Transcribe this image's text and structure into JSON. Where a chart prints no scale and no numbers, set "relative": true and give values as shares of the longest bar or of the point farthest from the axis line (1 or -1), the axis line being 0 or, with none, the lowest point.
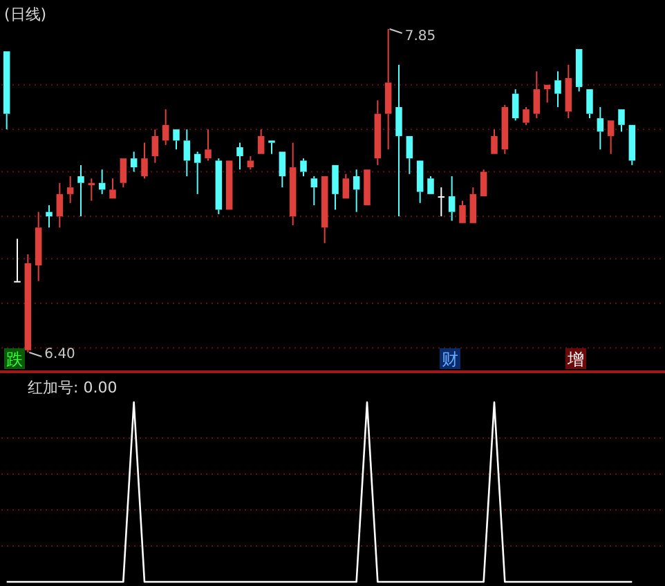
{
  "chart_data": [
    {
      "type": "candlestick",
      "title": "(日线)",
      "categories": [
        null,
        null,
        null,
        null,
        null,
        null,
        null,
        null,
        null,
        null,
        null,
        null,
        null,
        null,
        null,
        null,
        null,
        null,
        null,
        null,
        null,
        null,
        null,
        null,
        null,
        null,
        null,
        null,
        null,
        null,
        null,
        null,
        null,
        null,
        null,
        null,
        null,
        null,
        null,
        null,
        null,
        null,
        null,
        null,
        null,
        null,
        null,
        null,
        null,
        null,
        null,
        null,
        null,
        null,
        null,
        null,
        null,
        null,
        null,
        null
      ],
      "ohlc": [
        [
          7.75,
          7.75,
          7.4,
          7.47
        ],
        [
          6.72,
          6.91,
          6.72,
          6.72
        ],
        [
          6.41,
          6.84,
          6.4,
          6.8
        ],
        [
          6.79,
          7.03,
          6.72,
          6.96
        ],
        [
          7.03,
          7.06,
          6.96,
          7.01
        ],
        [
          7.01,
          7.16,
          6.96,
          7.11
        ],
        [
          7.11,
          7.19,
          7.07,
          7.14
        ],
        [
          7.19,
          7.24,
          7.01,
          7.16
        ],
        [
          7.15,
          7.18,
          7.08,
          7.16
        ],
        [
          7.16,
          7.22,
          7.11,
          7.13
        ],
        [
          7.09,
          7.18,
          7.09,
          7.13
        ],
        [
          7.16,
          7.27,
          7.14,
          7.27
        ],
        [
          7.27,
          7.3,
          7.21,
          7.23
        ],
        [
          7.19,
          7.34,
          7.18,
          7.27
        ],
        [
          7.28,
          7.4,
          7.25,
          7.37
        ],
        [
          7.35,
          7.49,
          7.33,
          7.42
        ],
        [
          7.4,
          7.4,
          7.31,
          7.35
        ],
        [
          7.35,
          7.4,
          7.19,
          7.26
        ],
        [
          7.29,
          7.3,
          7.11,
          7.25
        ],
        [
          7.27,
          7.4,
          7.26,
          7.31
        ],
        [
          7.26,
          7.27,
          7.02,
          7.04
        ],
        [
          7.04,
          7.26,
          7.04,
          7.26
        ],
        [
          7.32,
          7.34,
          7.22,
          7.28
        ],
        [
          7.23,
          7.28,
          7.22,
          7.26
        ],
        [
          7.29,
          7.4,
          7.29,
          7.37
        ],
        [
          7.35,
          7.35,
          7.29,
          7.34
        ],
        [
          7.3,
          7.3,
          7.14,
          7.19
        ],
        [
          7.01,
          7.34,
          6.97,
          7.23
        ],
        [
          7.26,
          7.27,
          7.19,
          7.21
        ],
        [
          7.18,
          7.19,
          7.06,
          7.14
        ],
        [
          6.96,
          7.19,
          6.89,
          7.19
        ],
        [
          7.24,
          7.24,
          7.04,
          7.11
        ],
        [
          7.09,
          7.2,
          7.09,
          7.18
        ],
        [
          7.19,
          7.22,
          7.03,
          7.13
        ],
        [
          7.06,
          7.22,
          7.06,
          7.22
        ],
        [
          7.27,
          7.53,
          7.24,
          7.47
        ],
        [
          7.47,
          7.85,
          7.31,
          7.61
        ],
        [
          7.5,
          7.69,
          7.01,
          7.37
        ],
        [
          7.37,
          7.37,
          7.2,
          7.27
        ],
        [
          7.26,
          7.26,
          7.07,
          7.12
        ],
        [
          7.18,
          7.19,
          7.11,
          7.11
        ],
        [
          7.1,
          7.14,
          7.01,
          7.1
        ],
        [
          7.1,
          7.19,
          6.99,
          7.03
        ],
        [
          6.98,
          7.08,
          6.98,
          7.06
        ],
        [
          6.98,
          7.14,
          6.98,
          7.11
        ],
        [
          7.1,
          7.22,
          7.1,
          7.21
        ],
        [
          7.29,
          7.4,
          7.29,
          7.37
        ],
        [
          7.31,
          7.51,
          7.29,
          7.5
        ],
        [
          7.56,
          7.58,
          7.44,
          7.45
        ],
        [
          7.43,
          7.5,
          7.42,
          7.49
        ],
        [
          7.47,
          7.66,
          7.45,
          7.58
        ],
        [
          7.58,
          7.6,
          7.52,
          7.6
        ],
        [
          7.62,
          7.66,
          7.5,
          7.56
        ],
        [
          7.48,
          7.69,
          7.45,
          7.63
        ],
        [
          7.76,
          7.76,
          7.57,
          7.59
        ],
        [
          7.58,
          7.58,
          7.45,
          7.47
        ],
        [
          7.45,
          7.5,
          7.31,
          7.39
        ],
        [
          7.37,
          7.44,
          7.29,
          7.44
        ],
        [
          7.49,
          7.49,
          7.39,
          7.42
        ],
        [
          7.42,
          7.42,
          7.24,
          7.26
        ]
      ],
      "yticks": [
        {
          "value": 6.42,
          "label": null
        },
        {
          "value": 6.62,
          "label": null
        },
        {
          "value": 6.82,
          "label": null
        },
        {
          "value": 7.01,
          "label": null
        },
        {
          "value": 7.21,
          "label": null
        },
        {
          "value": 7.4,
          "label": null
        },
        {
          "value": 7.6,
          "label": null
        }
      ],
      "grid": "y",
      "annotations": [
        "7.85",
        "6.40",
        "跌",
        "财",
        "增"
      ]
    },
    {
      "type": "line",
      "title": "红加号: 0.00",
      "relative": true,
      "color": "#ffffff",
      "ref_lines": [
        {
          "axis": "y",
          "value": 0.8,
          "color": "#6a1010",
          "line_style": "dotted"
        },
        {
          "axis": "y",
          "value": 0.6,
          "color": "#6a1010",
          "line_style": "dotted"
        },
        {
          "axis": "y",
          "value": 0.4,
          "color": "#6a1010",
          "line_style": "dotted"
        },
        {
          "axis": "y",
          "value": 0.2,
          "color": "#6a1010",
          "line_style": "dotted"
        }
      ],
      "categories": [
        null,
        null,
        null,
        null,
        null,
        null,
        null,
        null,
        null,
        null,
        null,
        null,
        null,
        null,
        null,
        null,
        null,
        null,
        null,
        null,
        null,
        null,
        null,
        null,
        null,
        null,
        null,
        null,
        null,
        null,
        null,
        null,
        null,
        null,
        null,
        null,
        null,
        null,
        null,
        null,
        null,
        null,
        null,
        null,
        null,
        null,
        null,
        null,
        null,
        null,
        null,
        null,
        null,
        null,
        null,
        null,
        null,
        null,
        null,
        null
      ],
      "values": [
        0,
        0,
        0,
        0,
        0,
        0,
        0,
        0,
        0,
        0,
        0,
        0,
        1,
        0,
        0,
        0,
        0,
        0,
        0,
        0,
        0,
        0,
        0,
        0,
        0,
        0,
        0,
        0,
        0,
        0,
        0,
        0,
        0,
        0,
        1,
        0,
        0,
        0,
        0,
        0,
        0,
        0,
        0,
        0,
        0,
        0,
        1,
        0,
        0,
        0,
        0,
        0,
        0,
        0,
        0,
        0,
        0,
        0,
        0,
        0
      ]
    }
  ]
}
